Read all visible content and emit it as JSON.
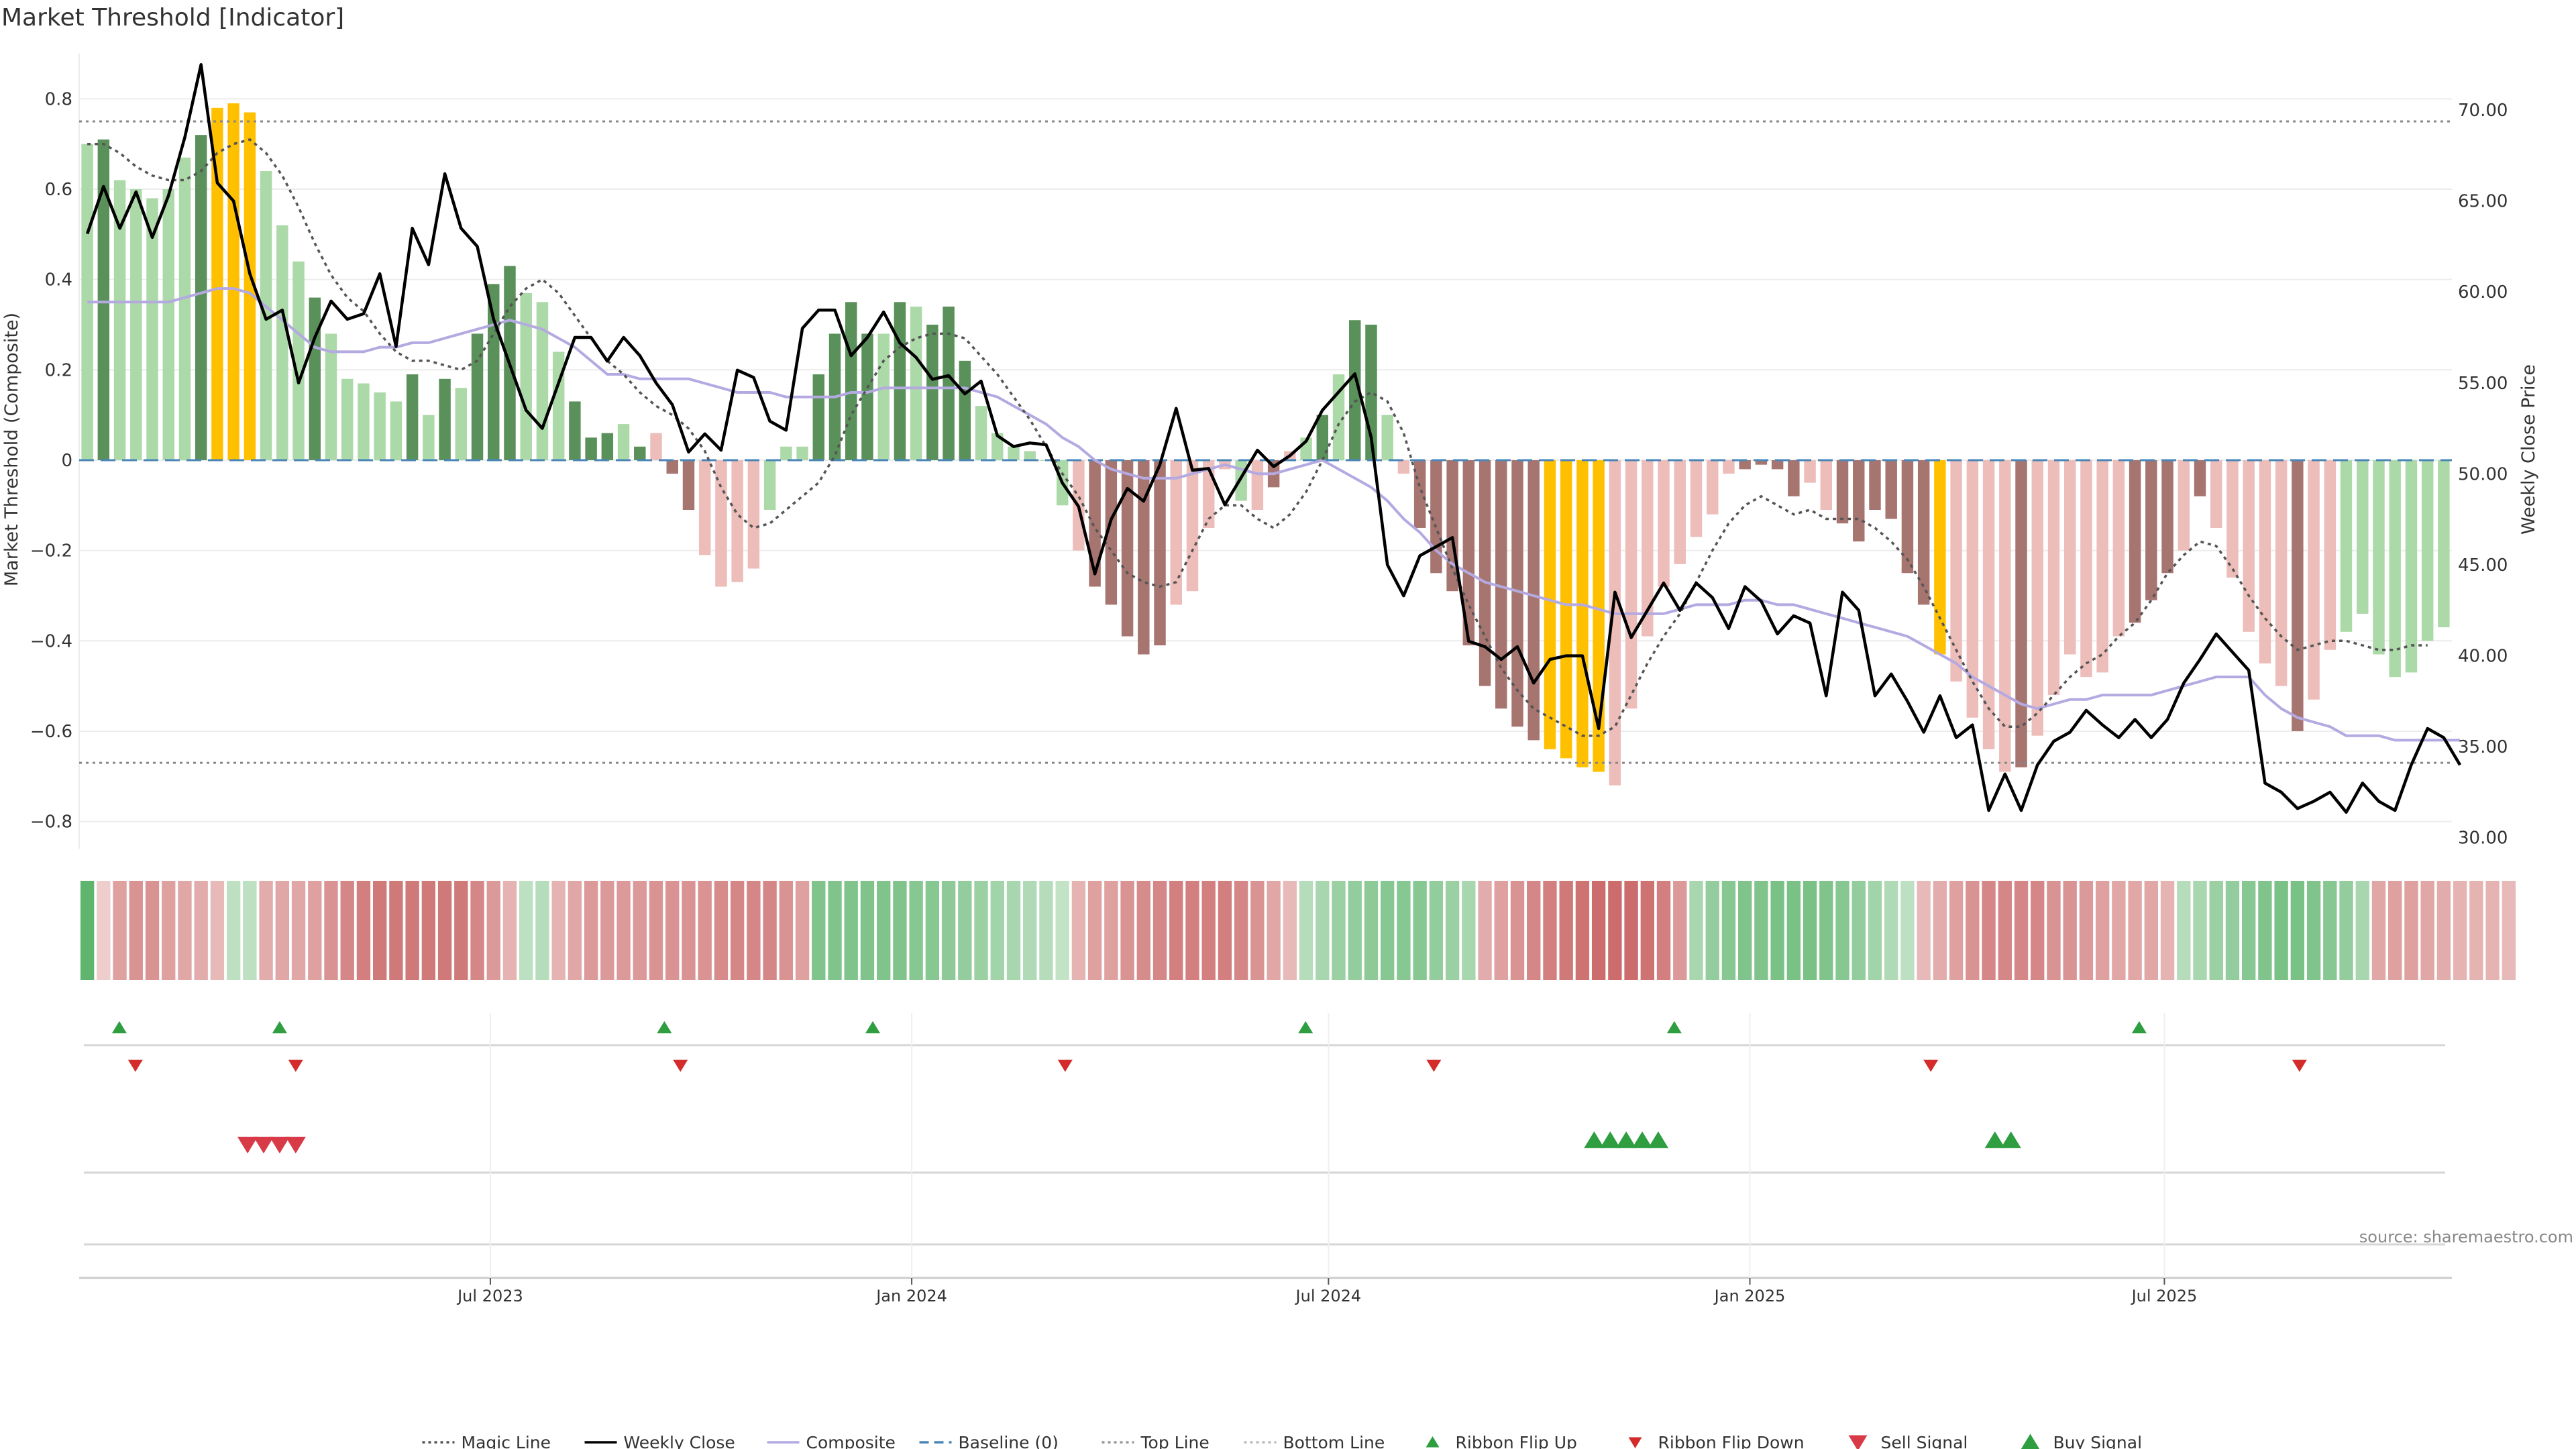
{
  "title": "Market Threshold [Indicator]",
  "source_label": "source: sharemaestro.com",
  "colors": {
    "pos_strong": "#5a905a",
    "pos_light": "#acd9a8",
    "neg_strong": "#a77570",
    "neg_light": "#ecbdb9",
    "extreme": "#ffc000",
    "close": "#000000",
    "composite": "#b4a9e1",
    "magic": "#555555",
    "baseline": "#4a86b8",
    "threshold_line": "#888888",
    "buy": "#2e9e40",
    "sell": "#d93a48",
    "grid": "#ececec",
    "axis": "#cccccc"
  },
  "chart_data": {
    "type": "bar",
    "title": "Market Threshold [Indicator]",
    "ylabel_left": "Market Threshold (Composite)",
    "ylabel_right": "Weekly Close Price",
    "ylim_left": [
      -0.86,
      0.9
    ],
    "ylim_right": [
      29.4,
      73.1
    ],
    "yticks_left": [
      "0.8",
      "0.6",
      "0.4",
      "0.2",
      "0",
      "−0.2",
      "−0.4",
      "−0.6",
      "−0.8"
    ],
    "yticks_left_values": [
      0.8,
      0.6,
      0.4,
      0.2,
      0,
      -0.2,
      -0.4,
      -0.6,
      -0.8
    ],
    "yticks_right": [
      "70.00",
      "65.00",
      "60.00",
      "55.00",
      "50.00",
      "45.00",
      "40.00",
      "35.00",
      "30.00"
    ],
    "yticks_right_values": [
      70,
      65,
      60,
      55,
      50,
      45,
      40,
      35,
      30
    ],
    "x_start_date": "2023-01-06",
    "x_end_date": "2025-10-31",
    "xtick_labels": [
      "Jul 2023",
      "Jan 2024",
      "Jul 2024",
      "Jan 2025",
      "Jul 2025"
    ],
    "xtick_dates": [
      "2023-07-01",
      "2024-01-01",
      "2024-07-01",
      "2025-01-01",
      "2025-07-01"
    ],
    "top_line": 0.75,
    "bottom_line": -0.67,
    "baseline": 0,
    "bar_state_legend": {
      "S": "strong positive",
      "L": "light positive",
      "Y": "extreme",
      "D": "strong negative",
      "P": "light negative"
    },
    "bar_states": [
      "L",
      "S",
      "L",
      "L",
      "L",
      "L",
      "L",
      "S",
      "Y",
      "Y",
      "Y",
      "L",
      "L",
      "L",
      "S",
      "L",
      "L",
      "L",
      "L",
      "L",
      "S",
      "L",
      "S",
      "L",
      "S",
      "S",
      "S",
      "L",
      "L",
      "L",
      "S",
      "S",
      "S",
      "L",
      "S",
      "P",
      "D",
      "D",
      "P",
      "P",
      "P",
      "P",
      "L",
      "L",
      "L",
      "S",
      "S",
      "S",
      "S",
      "L",
      "S",
      "L",
      "S",
      "S",
      "S",
      "L",
      "L",
      "L",
      "L",
      "L",
      "L",
      "P",
      "D",
      "D",
      "D",
      "D",
      "D",
      "P",
      "P",
      "P",
      "P",
      "L",
      "P",
      "D",
      "P",
      "L",
      "S",
      "L",
      "S",
      "S",
      "L",
      "P",
      "D",
      "D",
      "D",
      "D",
      "D",
      "D",
      "D",
      "D",
      "Y",
      "Y",
      "Y",
      "Y",
      "P",
      "P",
      "P",
      "P",
      "P",
      "P",
      "P",
      "P",
      "D",
      "D",
      "D",
      "D",
      "P",
      "P",
      "D",
      "D",
      "D",
      "D",
      "D",
      "D",
      "Y",
      "P",
      "P",
      "P",
      "P",
      "D",
      "P",
      "P",
      "P",
      "P",
      "P",
      "P",
      "D",
      "D",
      "D",
      "P",
      "D",
      "P",
      "P",
      "P",
      "P",
      "P",
      "D",
      "P",
      "P"
    ],
    "composite_bars": [
      0.7,
      0.71,
      0.62,
      0.6,
      0.58,
      0.6,
      0.67,
      0.72,
      0.78,
      0.79,
      0.77,
      0.64,
      0.52,
      0.44,
      0.36,
      0.28,
      0.18,
      0.17,
      0.15,
      0.13,
      0.19,
      0.1,
      0.18,
      0.16,
      0.28,
      0.39,
      0.43,
      0.37,
      0.35,
      0.24,
      0.13,
      0.05,
      0.06,
      0.08,
      0.03,
      0.06,
      -0.03,
      -0.11,
      -0.21,
      -0.28,
      -0.27,
      -0.24,
      -0.11,
      0.03,
      0.03,
      0.19,
      0.28,
      0.35,
      0.28,
      0.28,
      0.35,
      0.34,
      0.3,
      0.34,
      0.22,
      0.12,
      0.06,
      0.03,
      0.02,
      0.0,
      -0.1,
      -0.2,
      -0.28,
      -0.32,
      -0.39,
      -0.43,
      -0.41,
      -0.32,
      -0.29,
      -0.15,
      -0.02,
      -0.09,
      -0.11,
      -0.06,
      0.02,
      0.05,
      0.1,
      0.19,
      0.31,
      0.3,
      0.1,
      -0.03,
      -0.15,
      -0.25,
      -0.29,
      -0.41,
      -0.5,
      -0.55,
      -0.59,
      -0.62,
      -0.64,
      -0.66,
      -0.68,
      -0.69,
      -0.72,
      -0.55,
      -0.39,
      -0.28,
      -0.23,
      -0.17,
      -0.12,
      -0.03,
      -0.02,
      -0.01,
      -0.02,
      -0.08,
      -0.05,
      -0.11,
      -0.14,
      -0.18,
      -0.11,
      -0.13,
      -0.25,
      -0.32,
      -0.43,
      -0.49,
      -0.57,
      -0.64,
      -0.69,
      -0.68,
      -0.61,
      -0.52,
      -0.43,
      -0.48,
      -0.47,
      -0.39,
      -0.36,
      -0.31,
      -0.25,
      -0.2,
      -0.08,
      -0.15,
      -0.26,
      -0.38,
      -0.45,
      -0.5,
      -0.6,
      -0.53,
      -0.42,
      -0.38,
      -0.34,
      -0.43,
      -0.48,
      -0.47,
      -0.4,
      -0.37
    ],
    "series": [
      {
        "name": "Weekly Close",
        "values": [
          63.2,
          65.8,
          63.5,
          65.5,
          63.0,
          65.3,
          68.5,
          72.5,
          66.0,
          65.0,
          61.0,
          58.5,
          59.0,
          55.0,
          57.5,
          59.5,
          58.5,
          58.8,
          61.0,
          57.0,
          63.5,
          61.5,
          66.5,
          63.5,
          62.5,
          58.5,
          56.0,
          53.5,
          52.5,
          55.0,
          57.5,
          57.5,
          56.2,
          57.5,
          56.5,
          55.0,
          53.8,
          51.2,
          52.2,
          51.3,
          55.7,
          55.3,
          52.9,
          52.4,
          58.0,
          59.0,
          59.0,
          56.5,
          57.5,
          58.9,
          57.2,
          56.4,
          55.2,
          55.4,
          54.4,
          55.1,
          52.1,
          51.5,
          51.7,
          51.6,
          49.5,
          48.2,
          44.5,
          47.5,
          49.2,
          48.5,
          50.5,
          53.6,
          50.2,
          50.3,
          48.3,
          49.8,
          51.3,
          50.4,
          51.0,
          51.8,
          53.5,
          54.5,
          55.5,
          52.0,
          45.0,
          43.3,
          45.5,
          46.0,
          46.5,
          40.8,
          40.5,
          39.8,
          40.5,
          38.5,
          39.8,
          40.0,
          40.0,
          36.0,
          43.5,
          41.0,
          42.5,
          44.0,
          42.5,
          44.0,
          43.2,
          41.5,
          43.8,
          43.0,
          41.2,
          42.2,
          41.8,
          37.8,
          43.5,
          42.5,
          37.8,
          39.0,
          37.5,
          35.8,
          37.8,
          35.5,
          36.2,
          31.5,
          33.5,
          31.5,
          34.0,
          35.3,
          35.8,
          37.0,
          36.2,
          35.5,
          36.5,
          35.5,
          36.5,
          38.5,
          39.8,
          41.2,
          40.2,
          39.2,
          33.0,
          32.5,
          31.6,
          32.0,
          32.5,
          31.4,
          33.0,
          32.0,
          31.5,
          34.0,
          36.0,
          35.5,
          34.0
        ],
        "axis": "right"
      },
      {
        "name": "Composite",
        "values": [
          0.35,
          0.35,
          0.35,
          0.35,
          0.35,
          0.35,
          0.36,
          0.37,
          0.38,
          0.38,
          0.37,
          0.34,
          0.31,
          0.28,
          0.25,
          0.24,
          0.24,
          0.24,
          0.25,
          0.25,
          0.26,
          0.26,
          0.27,
          0.28,
          0.29,
          0.3,
          0.31,
          0.3,
          0.29,
          0.27,
          0.25,
          0.22,
          0.19,
          0.19,
          0.18,
          0.18,
          0.18,
          0.18,
          0.17,
          0.16,
          0.15,
          0.15,
          0.15,
          0.14,
          0.14,
          0.14,
          0.14,
          0.15,
          0.15,
          0.16,
          0.16,
          0.16,
          0.16,
          0.16,
          0.16,
          0.15,
          0.14,
          0.12,
          0.1,
          0.08,
          0.05,
          0.03,
          0.0,
          -0.02,
          -0.03,
          -0.04,
          -0.04,
          -0.04,
          -0.03,
          -0.02,
          -0.01,
          -0.02,
          -0.03,
          -0.03,
          -0.02,
          -0.01,
          0.0,
          -0.02,
          -0.04,
          -0.06,
          -0.09,
          -0.13,
          -0.16,
          -0.2,
          -0.23,
          -0.25,
          -0.27,
          -0.28,
          -0.29,
          -0.3,
          -0.31,
          -0.32,
          -0.32,
          -0.33,
          -0.34,
          -0.34,
          -0.34,
          -0.34,
          -0.33,
          -0.32,
          -0.32,
          -0.32,
          -0.31,
          -0.31,
          -0.32,
          -0.32,
          -0.33,
          -0.34,
          -0.35,
          -0.36,
          -0.37,
          -0.38,
          -0.39,
          -0.41,
          -0.43,
          -0.45,
          -0.48,
          -0.5,
          -0.52,
          -0.54,
          -0.55,
          -0.54,
          -0.53,
          -0.53,
          -0.52,
          -0.52,
          -0.52,
          -0.52,
          -0.51,
          -0.5,
          -0.49,
          -0.48,
          -0.48,
          -0.48,
          -0.52,
          -0.55,
          -0.57,
          -0.58,
          -0.59,
          -0.61,
          -0.61,
          -0.61,
          -0.62,
          -0.62,
          -0.62,
          -0.62,
          -0.62
        ],
        "axis": "left"
      },
      {
        "name": "Magic Line",
        "values": [
          0.7,
          0.7,
          0.68,
          0.65,
          0.63,
          0.62,
          0.62,
          0.64,
          0.68,
          0.7,
          0.71,
          0.68,
          0.63,
          0.56,
          0.48,
          0.41,
          0.36,
          0.33,
          0.28,
          0.24,
          0.22,
          0.22,
          0.21,
          0.2,
          0.22,
          0.28,
          0.34,
          0.38,
          0.4,
          0.37,
          0.32,
          0.27,
          0.22,
          0.19,
          0.15,
          0.12,
          0.1,
          0.07,
          0.02,
          -0.06,
          -0.12,
          -0.15,
          -0.14,
          -0.11,
          -0.08,
          -0.05,
          0.01,
          0.1,
          0.16,
          0.22,
          0.25,
          0.27,
          0.28,
          0.28,
          0.27,
          0.23,
          0.19,
          0.14,
          0.09,
          0.03,
          -0.03,
          -0.08,
          -0.15,
          -0.2,
          -0.25,
          -0.27,
          -0.28,
          -0.27,
          -0.2,
          -0.13,
          -0.1,
          -0.1,
          -0.13,
          -0.15,
          -0.12,
          -0.07,
          0.0,
          0.08,
          0.13,
          0.15,
          0.13,
          0.06,
          -0.06,
          -0.15,
          -0.24,
          -0.32,
          -0.39,
          -0.46,
          -0.51,
          -0.55,
          -0.57,
          -0.59,
          -0.61,
          -0.61,
          -0.59,
          -0.52,
          -0.45,
          -0.39,
          -0.34,
          -0.27,
          -0.2,
          -0.14,
          -0.1,
          -0.08,
          -0.1,
          -0.12,
          -0.11,
          -0.13,
          -0.13,
          -0.13,
          -0.15,
          -0.18,
          -0.22,
          -0.28,
          -0.35,
          -0.42,
          -0.49,
          -0.55,
          -0.59,
          -0.59,
          -0.56,
          -0.52,
          -0.48,
          -0.45,
          -0.43,
          -0.39,
          -0.36,
          -0.31,
          -0.25,
          -0.21,
          -0.18,
          -0.19,
          -0.24,
          -0.3,
          -0.35,
          -0.39,
          -0.42,
          -0.41,
          -0.4,
          -0.4,
          -0.41,
          -0.42,
          -0.42,
          -0.41,
          -0.41
        ],
        "axis": "left"
      }
    ],
    "ribbon_strength": [
      1,
      -0.15,
      -0.5,
      -0.6,
      -0.6,
      -0.5,
      -0.45,
      -0.4,
      -0.3,
      0.3,
      0.3,
      -0.4,
      -0.45,
      -0.45,
      -0.5,
      -0.6,
      -0.7,
      -0.75,
      -0.8,
      -0.8,
      -0.8,
      -0.8,
      -0.8,
      -0.8,
      -0.7,
      -0.55,
      -0.35,
      0.3,
      0.35,
      -0.35,
      -0.45,
      -0.55,
      -0.55,
      -0.55,
      -0.55,
      -0.6,
      -0.6,
      -0.6,
      -0.6,
      -0.65,
      -0.7,
      -0.7,
      -0.7,
      -0.6,
      -0.5,
      0.75,
      0.75,
      0.75,
      0.75,
      0.75,
      0.75,
      0.7,
      0.7,
      0.65,
      0.6,
      0.55,
      0.5,
      0.45,
      0.4,
      0.35,
      0.25,
      -0.35,
      -0.5,
      -0.5,
      -0.6,
      -0.65,
      -0.7,
      -0.75,
      -0.75,
      -0.75,
      -0.75,
      -0.7,
      -0.6,
      -0.45,
      -0.3,
      0.35,
      0.45,
      0.55,
      0.6,
      0.65,
      0.7,
      0.7,
      0.7,
      0.6,
      0.55,
      0.45,
      -0.4,
      -0.5,
      -0.6,
      -0.7,
      -0.75,
      -0.8,
      -0.85,
      -0.9,
      -0.9,
      -0.9,
      -0.85,
      -0.75,
      -0.55,
      0.45,
      0.6,
      0.7,
      0.75,
      0.75,
      0.8,
      0.8,
      0.8,
      0.75,
      0.7,
      0.6,
      0.5,
      0.4,
      0.3,
      -0.3,
      -0.4,
      -0.5,
      -0.6,
      -0.7,
      -0.7,
      -0.7,
      -0.7,
      -0.6,
      -0.6,
      -0.55,
      -0.5,
      -0.45,
      -0.45,
      -0.45,
      -0.35,
      0.35,
      0.45,
      0.55,
      0.6,
      0.7,
      0.75,
      0.8,
      0.8,
      0.75,
      0.7,
      0.6,
      0.45,
      -0.45,
      -0.5,
      -0.5,
      -0.45,
      -0.4,
      -0.35,
      -0.35,
      -0.35,
      -0.3
    ],
    "ribbon_flip_up_dates": [
      "2023-01-20",
      "2023-03-31",
      "2023-09-15",
      "2023-12-15",
      "2024-06-21",
      "2024-11-29",
      "2025-06-20"
    ],
    "ribbon_flip_down_dates": [
      "2023-01-27",
      "2023-04-07",
      "2023-09-22",
      "2024-03-08",
      "2024-08-16",
      "2025-03-21",
      "2025-08-29"
    ],
    "sell_signal_dates": [
      "2023-03-17",
      "2023-03-24",
      "2023-03-31",
      "2023-04-07"
    ],
    "buy_signal_dates": [
      "2024-10-25",
      "2024-11-01",
      "2024-11-08",
      "2024-11-15",
      "2024-11-22",
      "2025-04-18",
      "2025-04-25"
    ]
  },
  "legend": [
    {
      "label": "Magic Line",
      "kind": "dotted-line",
      "color": "#555555"
    },
    {
      "label": "Weekly Close",
      "kind": "solid-line",
      "color": "#000000"
    },
    {
      "label": "Composite",
      "kind": "solid-line",
      "color": "#b4a9e1"
    },
    {
      "label": "Baseline (0)",
      "kind": "dashed-line",
      "color": "#4a86b8"
    },
    {
      "label": "Top Line",
      "kind": "dotted-line",
      "color": "#999999"
    },
    {
      "label": "Bottom Line",
      "kind": "dotted-line",
      "color": "#bbbbbb"
    },
    {
      "label": "Ribbon Flip Up",
      "kind": "triangle-up-small",
      "color": "#2e9e40"
    },
    {
      "label": "Ribbon Flip Down",
      "kind": "triangle-down-small",
      "color": "#d42b2b"
    },
    {
      "label": "Sell Signal",
      "kind": "triangle-down",
      "color": "#d93a48"
    },
    {
      "label": "Buy Signal",
      "kind": "triangle-up",
      "color": "#2e9e40"
    }
  ]
}
